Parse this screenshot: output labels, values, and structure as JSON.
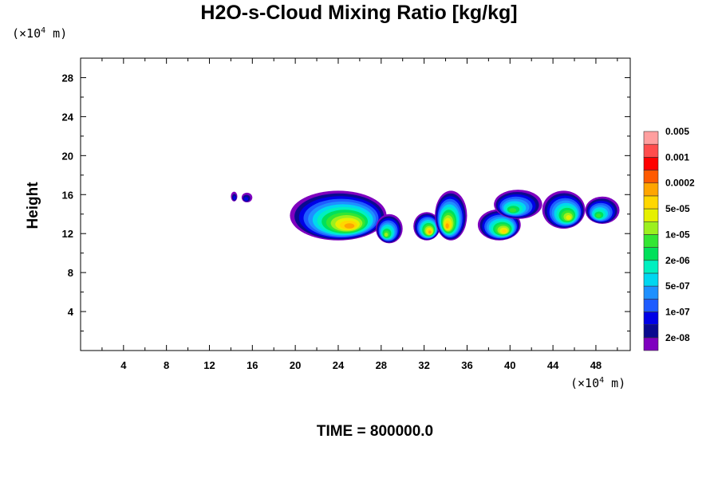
{
  "chart_data": {
    "type": "heatmap",
    "title": "H2O-s-Cloud Mixing Ratio [kg/kg]",
    "ylabel": "Height",
    "x_unit": {
      "prefix": "(×10",
      "exp": "4",
      "suffix": " m)"
    },
    "y_unit": {
      "prefix": "(×10",
      "exp": "4",
      "suffix": " m)"
    },
    "xlim": [
      0,
      51.2
    ],
    "ylim": [
      0,
      30
    ],
    "x_ticks": [
      4,
      8,
      12,
      16,
      20,
      24,
      28,
      32,
      36,
      40,
      44,
      48
    ],
    "y_ticks": [
      4,
      8,
      12,
      16,
      20,
      24,
      28
    ],
    "colorbar": {
      "colors": [
        "#7f00bf",
        "#0a0a8f",
        "#0000e6",
        "#1e5cff",
        "#1e90ff",
        "#00d7f0",
        "#00f0c0",
        "#00e05a",
        "#33e633",
        "#9cf01e",
        "#e6f000",
        "#ffd700",
        "#ffa500",
        "#ff5a00",
        "#ff0000",
        "#ff4d4d",
        "#ff9f9f"
      ],
      "labels": [
        "2e-08",
        "1e-07",
        "5e-07",
        "2e-06",
        "1e-05",
        "5e-05",
        "0.0002",
        "0.001",
        "0.005"
      ]
    },
    "cloud_regions": [
      {
        "x": [
          14.0,
          14.6
        ],
        "y": [
          15.3,
          16.3
        ],
        "max_level": 2
      },
      {
        "x": [
          15.0,
          16.0
        ],
        "y": [
          15.2,
          16.2
        ],
        "max_level": 2
      },
      {
        "x": [
          19.5,
          28.5
        ],
        "y": [
          11.3,
          16.4
        ],
        "max_level": 12
      },
      {
        "x": [
          27.5,
          30.0
        ],
        "y": [
          11.0,
          14.0
        ],
        "max_level": 9
      },
      {
        "x": [
          31.0,
          33.5
        ],
        "y": [
          11.3,
          14.2
        ],
        "max_level": 12
      },
      {
        "x": [
          33.0,
          36.0
        ],
        "y": [
          11.3,
          16.4
        ],
        "max_level": 12
      },
      {
        "x": [
          37.0,
          41.0
        ],
        "y": [
          11.3,
          14.5
        ],
        "max_level": 11
      },
      {
        "x": [
          38.5,
          43.0
        ],
        "y": [
          13.5,
          16.5
        ],
        "max_level": 8
      },
      {
        "x": [
          43.0,
          47.0
        ],
        "y": [
          12.5,
          16.4
        ],
        "max_level": 10
      },
      {
        "x": [
          47.0,
          50.2
        ],
        "y": [
          13.0,
          15.8
        ],
        "max_level": 8
      }
    ],
    "time_label": "TIME = 800000.0"
  }
}
